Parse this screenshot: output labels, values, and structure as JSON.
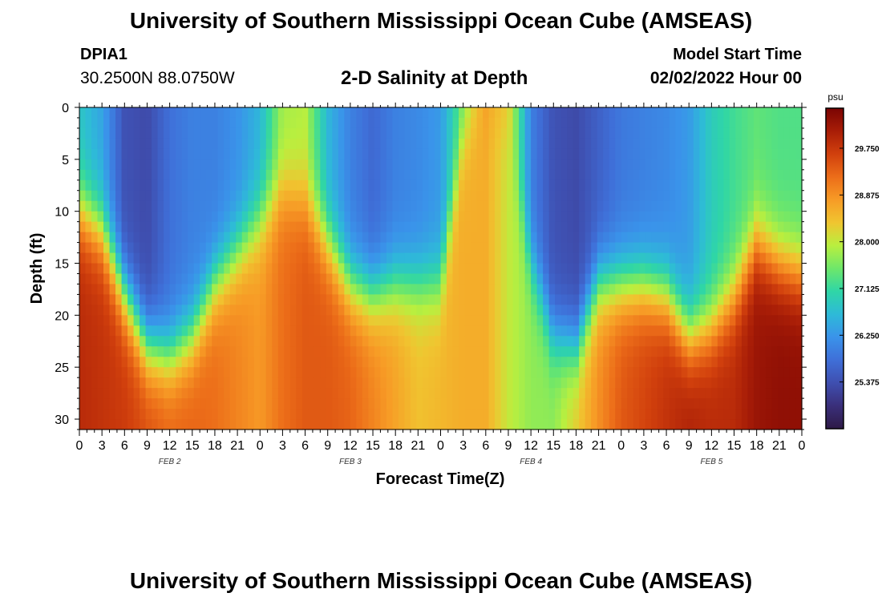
{
  "header": {
    "title": "University of Southern Mississippi Ocean Cube (AMSEAS)",
    "station_id": "DPIA1",
    "station_coords": "30.2500N  88.0750W",
    "subtitle": "2-D Salinity at Depth",
    "model_start_label": "Model Start Time",
    "model_start_value": "02/02/2022 Hour 00"
  },
  "footer": {
    "title": "University of Southern Mississippi Ocean Cube (AMSEAS)"
  },
  "colors": {
    "ramp": [
      "#2e1a47",
      "#3a2f7a",
      "#3f4fb0",
      "#3f6fd8",
      "#3a93ea",
      "#2ebad8",
      "#2fd6a6",
      "#6ee76a",
      "#b9ef3f",
      "#f0c530",
      "#f79b26",
      "#ec6d19",
      "#d1400d",
      "#a81d07",
      "#7a0403"
    ]
  },
  "chart_data": {
    "type": "heatmap",
    "title": "2-D Salinity at Depth",
    "xlabel": "Forecast Time(Z)",
    "ylabel": "Depth (ft)",
    "x_tick_labels": [
      "0",
      "3",
      "6",
      "9",
      "12",
      "15",
      "18",
      "21",
      "0",
      "3",
      "6",
      "9",
      "12",
      "15",
      "18",
      "21",
      "0",
      "3",
      "6",
      "9",
      "12",
      "15",
      "18",
      "21",
      "0",
      "3",
      "6",
      "9",
      "12",
      "15",
      "18",
      "21",
      "0"
    ],
    "x_range_hours": [
      0,
      96
    ],
    "y_ticks": [
      0,
      5,
      10,
      15,
      20,
      25,
      30
    ],
    "y_range_ft": [
      0,
      31
    ],
    "day_labels": [
      {
        "label": "FEB 2",
        "hour": 12
      },
      {
        "label": "FEB 3",
        "hour": 36
      },
      {
        "label": "FEB 4",
        "hour": 60
      },
      {
        "label": "FEB 5",
        "hour": 84
      }
    ],
    "colorbar": {
      "unit": "psu",
      "range": [
        24.5,
        30.5
      ],
      "tick_labels": [
        "29.750",
        "28.875",
        "28.000",
        "27.125",
        "26.250",
        "25.375"
      ],
      "tick_values": [
        29.75,
        28.875,
        28.0,
        27.125,
        26.25,
        25.375
      ]
    },
    "depth_levels_ft": [
      0,
      1,
      2,
      3,
      4,
      5,
      6,
      7,
      8,
      9,
      10,
      11,
      12,
      13,
      14,
      15,
      16,
      17,
      18,
      19,
      20,
      21,
      22,
      23,
      24,
      25,
      26,
      27,
      28,
      29,
      30,
      31
    ],
    "time_hours": [
      0,
      3,
      6,
      9,
      12,
      15,
      18,
      21,
      24,
      27,
      30,
      33,
      36,
      39,
      42,
      45,
      48,
      51,
      54,
      57,
      60,
      63,
      66,
      69,
      72,
      75,
      78,
      81,
      84,
      87,
      90,
      93,
      96
    ],
    "surface_salinity": [
      26.8,
      26.4,
      25.4,
      25.3,
      25.8,
      26.0,
      26.0,
      26.2,
      26.6,
      27.8,
      27.9,
      26.6,
      26.0,
      25.7,
      26.0,
      26.1,
      26.3,
      27.5,
      28.8,
      28.3,
      26.0,
      25.4,
      25.3,
      25.6,
      25.9,
      26.0,
      26.1,
      26.3,
      26.9,
      27.2,
      27.4,
      27.3,
      27.3
    ],
    "bottom_salinity": [
      29.9,
      29.8,
      29.7,
      29.5,
      29.3,
      29.3,
      29.2,
      29.0,
      28.8,
      29.2,
      29.4,
      29.4,
      29.3,
      29.0,
      28.7,
      28.4,
      28.5,
      28.6,
      28.6,
      28.0,
      27.7,
      27.7,
      28.3,
      28.9,
      29.4,
      29.6,
      29.8,
      30.0,
      29.9,
      29.9,
      30.2,
      30.3,
      30.3
    ],
    "halocline_depth_ft": [
      10,
      12,
      18,
      23,
      24,
      22,
      17,
      14,
      11,
      8,
      9,
      13,
      17,
      18,
      17,
      17,
      17,
      3,
      0,
      3,
      15,
      22,
      23,
      17,
      17,
      17,
      18,
      22,
      21,
      18,
      13,
      15,
      16
    ]
  }
}
